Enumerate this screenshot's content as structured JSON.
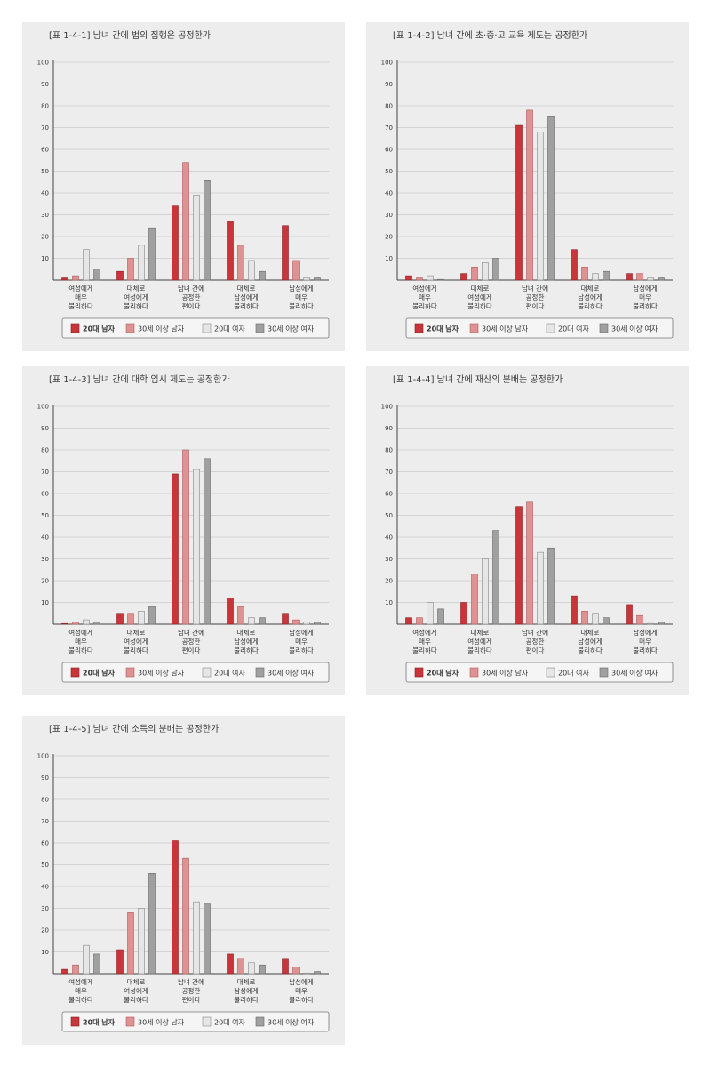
{
  "colors": {
    "s1": "#c8353a",
    "s2": "#de9292",
    "s3": "#e6e6e6",
    "s4": "#a0a0a0",
    "grid": "#c9c9c9",
    "axis": "#444444",
    "panel": "#ededed"
  },
  "chart_data": [
    {
      "type": "bar",
      "title": "[표 1-4-1]   남녀 간에 법의 집행은 공정한가",
      "ylim": [
        0,
        100
      ],
      "yticks": [
        "10",
        "20",
        "30",
        "40",
        "50",
        "60",
        "70",
        "80",
        "90",
        "100"
      ],
      "categories": [
        [
          "여성에게",
          "매우",
          "불리하다"
        ],
        [
          "대체로",
          "여성에게",
          "불리하다"
        ],
        [
          "남녀 간에",
          "공정한",
          "편이다"
        ],
        [
          "대체로",
          "남성에게",
          "불리하다"
        ],
        [
          "남성에게",
          "매우",
          "불리하다"
        ]
      ],
      "series": [
        {
          "name": "20대 남자",
          "values": [
            1,
            4,
            34,
            27,
            25
          ]
        },
        {
          "name": "30세 이상 남자",
          "values": [
            2,
            10,
            54,
            16,
            9
          ]
        },
        {
          "name": "20대 여자",
          "values": [
            14,
            16,
            39,
            9,
            1
          ]
        },
        {
          "name": "30세 이상 여자",
          "values": [
            5,
            24,
            46,
            4,
            1
          ]
        }
      ]
    },
    {
      "type": "bar",
      "title": "[표 1-4-2]   남녀 간에 초·중·고 교육 제도는 공정한가",
      "ylim": [
        0,
        100
      ],
      "yticks": [
        "10",
        "20",
        "30",
        "40",
        "50",
        "60",
        "70",
        "80",
        "90",
        "100"
      ],
      "categories": [
        [
          "여성에게",
          "매우",
          "불리하다"
        ],
        [
          "대체로",
          "여성에게",
          "불리하다"
        ],
        [
          "남녀 간에",
          "공정한",
          "편이다"
        ],
        [
          "대체로",
          "남성에게",
          "불리하다"
        ],
        [
          "남성에게",
          "매우",
          "불리하다"
        ]
      ],
      "series": [
        {
          "name": "20대 남자",
          "values": [
            2,
            3,
            71,
            14,
            3
          ]
        },
        {
          "name": "30세 이상 남자",
          "values": [
            1,
            6,
            78,
            6,
            3
          ]
        },
        {
          "name": "20대 여자",
          "values": [
            2,
            8,
            68,
            3,
            1
          ]
        },
        {
          "name": "30세 이상 여자",
          "values": [
            0,
            10,
            75,
            4,
            1
          ]
        }
      ]
    },
    {
      "type": "bar",
      "title": "[표 1-4-3]   남녀 간에 대학 입시 제도는 공정한가",
      "ylim": [
        0,
        100
      ],
      "yticks": [
        "10",
        "20",
        "30",
        "40",
        "50",
        "60",
        "70",
        "80",
        "90",
        "100"
      ],
      "categories": [
        [
          "여성에게",
          "매우",
          "불리하다"
        ],
        [
          "대체로",
          "여성에게",
          "불리하다"
        ],
        [
          "남녀 간에",
          "공정한",
          "편이다"
        ],
        [
          "대체로",
          "남성에게",
          "불리하다"
        ],
        [
          "남성에게",
          "매우",
          "불리하다"
        ]
      ],
      "series": [
        {
          "name": "20대 남자",
          "values": [
            0,
            5,
            69,
            12,
            5
          ]
        },
        {
          "name": "30세 이상 남자",
          "values": [
            1,
            5,
            80,
            8,
            2
          ]
        },
        {
          "name": "20대 여자",
          "values": [
            2,
            6,
            71,
            3,
            1
          ]
        },
        {
          "name": "30세 이상 여자",
          "values": [
            1,
            8,
            76,
            3,
            1
          ]
        }
      ]
    },
    {
      "type": "bar",
      "title": "[표 1-4-4]   남녀 간에 재산의 분배는 공정한가",
      "ylim": [
        0,
        100
      ],
      "yticks": [
        "10",
        "20",
        "30",
        "40",
        "50",
        "60",
        "70",
        "80",
        "90",
        "100"
      ],
      "categories": [
        [
          "여성에게",
          "매우",
          "불리하다"
        ],
        [
          "대체로",
          "여성에게",
          "불리하다"
        ],
        [
          "남녀 간에",
          "공정한",
          "편이다"
        ],
        [
          "대체로",
          "남성에게",
          "불리하다"
        ],
        [
          "남성에게",
          "매우",
          "불리하다"
        ]
      ],
      "series": [
        {
          "name": "20대 남자",
          "values": [
            3,
            10,
            54,
            13,
            9
          ]
        },
        {
          "name": "30세 이상 남자",
          "values": [
            3,
            23,
            56,
            6,
            4
          ]
        },
        {
          "name": "20대 여자",
          "values": [
            10,
            30,
            33,
            5,
            0
          ]
        },
        {
          "name": "30세 이상 여자",
          "values": [
            7,
            43,
            35,
            3,
            1
          ]
        }
      ]
    },
    {
      "type": "bar",
      "title": "[표 1-4-5]   남녀 간에 소득의 분배는 공정한가",
      "ylim": [
        0,
        100
      ],
      "yticks": [
        "10",
        "20",
        "30",
        "40",
        "50",
        "60",
        "70",
        "80",
        "90",
        "100"
      ],
      "categories": [
        [
          "여성에게",
          "매우",
          "불리하다"
        ],
        [
          "대체로",
          "여성에게",
          "불리하다"
        ],
        [
          "남녀 간에",
          "공정한",
          "편이다"
        ],
        [
          "대체로",
          "남성에게",
          "불리하다"
        ],
        [
          "남성에게",
          "매우",
          "불리하다"
        ]
      ],
      "series": [
        {
          "name": "20대 남자",
          "values": [
            2,
            11,
            61,
            9,
            7
          ]
        },
        {
          "name": "30세 이상 남자",
          "values": [
            4,
            28,
            53,
            7,
            3
          ]
        },
        {
          "name": "20대 여자",
          "values": [
            13,
            30,
            33,
            5,
            0
          ]
        },
        {
          "name": "30세 이상 여자",
          "values": [
            9,
            46,
            32,
            4,
            1
          ]
        }
      ]
    }
  ]
}
